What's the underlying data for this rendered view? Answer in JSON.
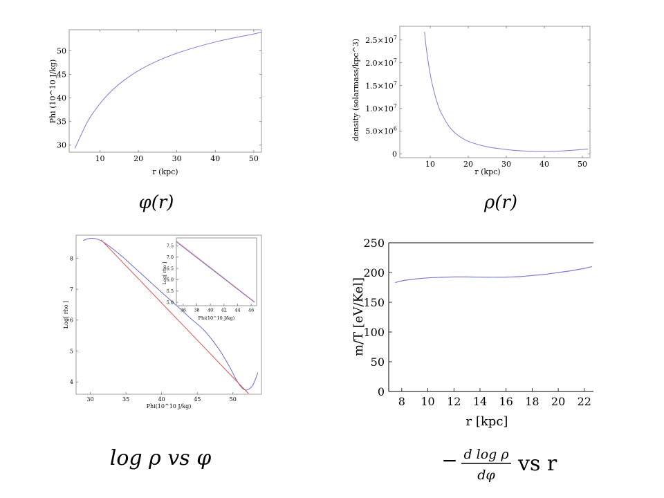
{
  "charts": {
    "phi": {
      "ylabel": "Phi (10^10 J/kg)",
      "xlabel": "r (kpc)",
      "caption": "φ(r)",
      "x_ticks": [
        "10",
        "20",
        "30",
        "40",
        "50"
      ],
      "y_ticks": [
        "30",
        "35",
        "40",
        "45",
        "50"
      ],
      "color": "#7a7ad2"
    },
    "rho": {
      "ylabel": "density (solarmass/kpc^3)",
      "xlabel": "r (kpc)",
      "caption": "ρ(r)",
      "x_ticks": [
        "10",
        "20",
        "30",
        "40",
        "50"
      ],
      "y_ticks": [
        {
          "mant": "0",
          "exp": ""
        },
        {
          "mant": "5.0×10",
          "exp": "6"
        },
        {
          "mant": "1.0×10",
          "exp": "7"
        },
        {
          "mant": "1.5×10",
          "exp": "7"
        },
        {
          "mant": "2.0×10",
          "exp": "7"
        },
        {
          "mant": "2.5×10",
          "exp": "7"
        }
      ],
      "color": "#7a7ad2"
    },
    "logrho": {
      "ylabel": "Log[ rho ]",
      "xlabel": "Phi(10^10 J/kg)",
      "caption": "log ρ vs φ",
      "x_ticks": [
        "30",
        "35",
        "40",
        "45",
        "50"
      ],
      "y_ticks": [
        "4",
        "5",
        "6",
        "7",
        "8"
      ],
      "inset_ylabel": "Log[ rho ]",
      "inset_xlabel": "Phi(10^10 J/kg)",
      "inset_x_ticks": [
        "36",
        "38",
        "40",
        "42",
        "44",
        "46"
      ],
      "inset_y_ticks": [
        "5.0",
        "5.5",
        "6.0",
        "6.5",
        "7.0",
        "7.5"
      ],
      "curve_color": "#6a6ac8",
      "fit_color": "#e05050"
    },
    "mT": {
      "ylabel": "m/T [eV/Kel]",
      "xlabel": "r [kpc]",
      "caption_frac_num": "d log ρ",
      "caption_frac_den": "dφ",
      "caption_minus": "−",
      "caption_tail": "vs r",
      "x_ticks": [
        "8",
        "10",
        "12",
        "14",
        "16",
        "18",
        "20",
        "22"
      ],
      "y_ticks": [
        "0",
        "50",
        "100",
        "150",
        "200",
        "250"
      ],
      "color": "#7a7ad2"
    }
  },
  "chart_data": [
    {
      "type": "line",
      "title": "",
      "xlabel": "r (kpc)",
      "ylabel": "Phi (10^10 J/kg)",
      "xlim": [
        2,
        52
      ],
      "ylim": [
        28.5,
        54.5
      ],
      "series": [
        {
          "x": [
            3.5,
            5,
            7,
            10,
            13,
            16,
            20,
            25,
            30,
            35,
            40,
            45,
            50,
            52
          ],
          "y": [
            29.3,
            32.0,
            35.3,
            38.8,
            41.5,
            43.6,
            45.8,
            47.9,
            49.5,
            50.8,
            51.9,
            52.8,
            53.6,
            54.0
          ]
        }
      ]
    },
    {
      "type": "line",
      "title": "",
      "xlabel": "r (kpc)",
      "ylabel": "density (solarmass/kpc^3)",
      "xlim": [
        2,
        52
      ],
      "ylim": [
        -800000,
        28000000
      ],
      "series": [
        {
          "x": [
            8.5,
            9,
            10,
            11,
            12,
            13,
            15,
            17,
            20,
            25,
            30,
            35,
            40,
            45,
            50,
            51.5
          ],
          "y": [
            26800000,
            23000000,
            17500000,
            13700000,
            10800000,
            8800000,
            6000000,
            4300000,
            2800000,
            1600000,
            1000000,
            650000,
            550000,
            700000,
            1000000,
            1100000
          ]
        }
      ]
    },
    {
      "type": "line",
      "title": "",
      "xlabel": "Phi(10^10 J/kg)",
      "ylabel": "Log[ rho ]",
      "xlim": [
        28,
        54
      ],
      "ylim": [
        3.6,
        8.75
      ],
      "series": [
        {
          "x": [
            29.0,
            30.0,
            31.0,
            32.0,
            34.0,
            36.0,
            38.0,
            40.0,
            42.0,
            44.0,
            46.0,
            48.0,
            49.5,
            50.5,
            51.3,
            52.0,
            52.8,
            53.5
          ],
          "y": [
            8.58,
            8.65,
            8.62,
            8.5,
            8.15,
            7.74,
            7.32,
            6.9,
            6.49,
            6.07,
            5.66,
            5.07,
            4.5,
            4.06,
            3.8,
            3.74,
            3.9,
            4.3
          ]
        },
        {
          "x": [
            31.5,
            52.2
          ],
          "y": [
            8.6,
            3.62
          ]
        }
      ]
    },
    {
      "type": "line",
      "title": "",
      "xlabel": "Phi(10^10 J/kg)",
      "ylabel": "Log[ rho ]",
      "xlim": [
        35,
        46.8
      ],
      "ylim": [
        4.85,
        7.85
      ],
      "series": [
        {
          "x": [
            35,
            46.5
          ],
          "y": [
            7.68,
            5.0
          ]
        },
        {
          "x": [
            35,
            46.5
          ],
          "y": [
            7.72,
            5.02
          ]
        }
      ]
    },
    {
      "type": "line",
      "title": "",
      "xlabel": "r [kpc]",
      "ylabel": "m/T [eV/Kel]",
      "xlim": [
        7,
        22.7
      ],
      "ylim": [
        0,
        250
      ],
      "series": [
        {
          "x": [
            7.5,
            8,
            9,
            10,
            11,
            12,
            13,
            14,
            15,
            16,
            17,
            18,
            19,
            20,
            21,
            22,
            22.6
          ],
          "y": [
            183,
            186,
            189,
            191,
            192,
            192.5,
            192.5,
            192.3,
            192.1,
            192.3,
            193,
            195,
            197,
            200,
            203,
            207,
            210
          ]
        }
      ]
    }
  ]
}
